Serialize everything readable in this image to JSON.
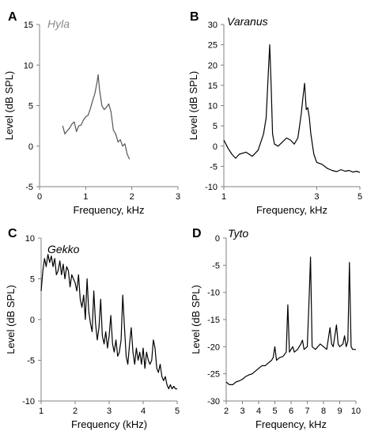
{
  "chart_data": [
    {
      "type": "line",
      "panel": "A",
      "title": "Hyla",
      "title_color": "#8a8a8a",
      "line_color": "#555555",
      "xlabel": "Frequency, kHz",
      "ylabel": "Level (dB SPL)",
      "ylabel_color": "#8a8a8a",
      "xlim": [
        0,
        3
      ],
      "ylim": [
        -5,
        15
      ],
      "xticks": [
        0,
        1,
        2,
        3
      ],
      "yticks": [
        -5,
        0,
        5,
        10,
        15
      ],
      "x_scale": "linear",
      "series": [
        {
          "x": [
            0.5,
            0.55,
            0.6,
            0.65,
            0.7,
            0.75,
            0.8,
            0.85,
            0.9,
            0.95,
            1.0,
            1.05,
            1.1,
            1.15,
            1.2,
            1.25,
            1.27,
            1.3,
            1.35,
            1.4,
            1.45,
            1.5,
            1.55,
            1.6,
            1.65,
            1.7,
            1.75,
            1.8,
            1.85,
            1.9,
            1.95
          ],
          "y": [
            2.5,
            1.5,
            1.9,
            2.2,
            2.7,
            3.0,
            1.8,
            2.5,
            2.6,
            3.2,
            3.6,
            3.8,
            4.6,
            5.6,
            6.5,
            8.0,
            8.8,
            7.0,
            5.0,
            4.5,
            4.8,
            5.2,
            4.2,
            2.0,
            1.5,
            0.5,
            0.8,
            0.0,
            0.3,
            -1.0,
            -1.6
          ]
        }
      ]
    },
    {
      "type": "line",
      "panel": "B",
      "title": "Varanus",
      "title_color": "#000000",
      "line_color": "#000000",
      "xlabel": "Frequency, kHz",
      "ylabel": "Level (dB SPL)",
      "ylabel_color": "#000000",
      "xlim": [
        1,
        5
      ],
      "ylim": [
        -10,
        30
      ],
      "xticks": [
        1,
        3,
        5
      ],
      "yticks": [
        -10,
        -5,
        0,
        5,
        10,
        15,
        20,
        25,
        30
      ],
      "x_scale": "log",
      "series": [
        {
          "x": [
            1.0,
            1.05,
            1.1,
            1.15,
            1.2,
            1.3,
            1.4,
            1.5,
            1.6,
            1.65,
            1.7,
            1.72,
            1.75,
            1.78,
            1.82,
            1.9,
            2.0,
            2.1,
            2.2,
            2.3,
            2.4,
            2.5,
            2.55,
            2.6,
            2.65,
            2.7,
            2.75,
            2.8,
            2.9,
            3.0,
            3.2,
            3.4,
            3.6,
            3.8,
            4.0,
            4.2,
            4.4,
            4.6,
            4.8,
            5.0
          ],
          "y": [
            1.5,
            -0.5,
            -2.0,
            -3.0,
            -2.0,
            -1.5,
            -2.5,
            -1.0,
            3.0,
            7.0,
            20.0,
            25.0,
            15.0,
            3.0,
            0.5,
            0.0,
            1.0,
            2.0,
            1.5,
            0.5,
            2.0,
            8.0,
            12.0,
            15.5,
            9.0,
            9.5,
            7.0,
            3.0,
            -2.0,
            -4.0,
            -4.5,
            -5.5,
            -6.0,
            -6.3,
            -5.8,
            -6.2,
            -6.0,
            -6.4,
            -6.2,
            -6.5
          ]
        }
      ]
    },
    {
      "type": "line",
      "panel": "C",
      "title": "Gekko",
      "title_color": "#000000",
      "line_color": "#000000",
      "xlabel": "Frequency (kHz)",
      "ylabel": "Level (dB SPL)",
      "ylabel_color": "#000000",
      "xlim": [
        1,
        5
      ],
      "ylim": [
        -10,
        10
      ],
      "xticks": [
        1,
        2,
        3,
        4,
        5
      ],
      "yticks": [
        -10,
        -5,
        0,
        5,
        10
      ],
      "x_scale": "linear",
      "series": [
        {
          "x": [
            1.0,
            1.05,
            1.1,
            1.15,
            1.2,
            1.25,
            1.3,
            1.35,
            1.4,
            1.45,
            1.5,
            1.55,
            1.6,
            1.65,
            1.7,
            1.75,
            1.8,
            1.85,
            1.9,
            1.95,
            2.0,
            2.05,
            2.1,
            2.15,
            2.2,
            2.25,
            2.3,
            2.35,
            2.4,
            2.45,
            2.5,
            2.55,
            2.6,
            2.65,
            2.7,
            2.75,
            2.8,
            2.85,
            2.9,
            2.95,
            3.0,
            3.05,
            3.1,
            3.15,
            3.2,
            3.25,
            3.3,
            3.35,
            3.4,
            3.45,
            3.5,
            3.55,
            3.6,
            3.65,
            3.7,
            3.75,
            3.8,
            3.85,
            3.9,
            3.95,
            4.0,
            4.05,
            4.1,
            4.15,
            4.2,
            4.25,
            4.3,
            4.35,
            4.4,
            4.45,
            4.5,
            4.55,
            4.6,
            4.65,
            4.7,
            4.75,
            4.8,
            4.85,
            4.9,
            4.95,
            5.0
          ],
          "y": [
            3.5,
            6.0,
            7.5,
            6.5,
            8.0,
            7.0,
            7.8,
            6.5,
            7.5,
            5.5,
            6.0,
            7.2,
            5.5,
            6.8,
            5.0,
            6.5,
            6.0,
            4.0,
            5.5,
            5.0,
            4.5,
            3.5,
            5.5,
            2.5,
            1.5,
            3.0,
            0.0,
            5.0,
            1.0,
            -0.5,
            -1.5,
            3.5,
            -0.5,
            -2.5,
            -1.0,
            2.5,
            -2.0,
            -3.0,
            -1.5,
            -3.5,
            -2.0,
            0.5,
            -3.0,
            -4.0,
            -2.5,
            -4.5,
            -4.0,
            -2.5,
            3.0,
            -1.0,
            -4.5,
            -5.5,
            -3.0,
            -1.0,
            -4.0,
            -5.5,
            -3.5,
            -5.0,
            -4.0,
            -5.5,
            -3.5,
            -6.0,
            -4.0,
            -5.0,
            -5.5,
            -5.0,
            -2.5,
            -3.5,
            -6.0,
            -6.5,
            -5.5,
            -7.0,
            -7.5,
            -7.0,
            -8.0,
            -8.5,
            -8.0,
            -8.5,
            -8.2,
            -8.5,
            -8.5
          ]
        }
      ]
    },
    {
      "type": "line",
      "panel": "D",
      "title": "Tyto",
      "title_color": "#000000",
      "line_color": "#000000",
      "xlabel": "Frequency, kHz",
      "ylabel": "Level (dB SPL)",
      "ylabel_color": "#000000",
      "xlim": [
        2,
        10
      ],
      "ylim": [
        -30,
        0
      ],
      "xticks": [
        2,
        3,
        4,
        5,
        6,
        7,
        8,
        9,
        10
      ],
      "yticks": [
        -30,
        -25,
        -20,
        -15,
        -10,
        -5,
        0
      ],
      "x_scale": "linear",
      "series": [
        {
          "x": [
            2.0,
            2.2,
            2.4,
            2.6,
            2.8,
            3.0,
            3.2,
            3.4,
            3.6,
            3.8,
            4.0,
            4.2,
            4.4,
            4.6,
            4.8,
            4.9,
            5.0,
            5.1,
            5.3,
            5.5,
            5.7,
            5.8,
            5.9,
            6.1,
            6.2,
            6.4,
            6.6,
            6.7,
            6.8,
            7.0,
            7.1,
            7.2,
            7.3,
            7.5,
            7.8,
            8.0,
            8.2,
            8.4,
            8.5,
            8.6,
            8.8,
            8.9,
            9.0,
            9.2,
            9.3,
            9.4,
            9.5,
            9.6,
            9.7,
            9.8,
            10.0
          ],
          "y": [
            -26.5,
            -27.0,
            -27.0,
            -26.5,
            -26.3,
            -26.0,
            -25.5,
            -25.2,
            -25.0,
            -24.5,
            -24.0,
            -23.5,
            -23.5,
            -23.0,
            -22.5,
            -22.0,
            -20.0,
            -22.5,
            -22.0,
            -21.8,
            -21.0,
            -12.3,
            -21.0,
            -20.0,
            -21.0,
            -20.5,
            -19.5,
            -18.8,
            -20.5,
            -20.0,
            -12.0,
            -3.5,
            -20.0,
            -20.5,
            -19.5,
            -20.0,
            -20.5,
            -16.5,
            -19.5,
            -20.0,
            -16.0,
            -19.5,
            -20.0,
            -19.5,
            -18.0,
            -20.0,
            -19.0,
            -4.5,
            -20.0,
            -20.5,
            -20.5
          ]
        }
      ]
    }
  ]
}
